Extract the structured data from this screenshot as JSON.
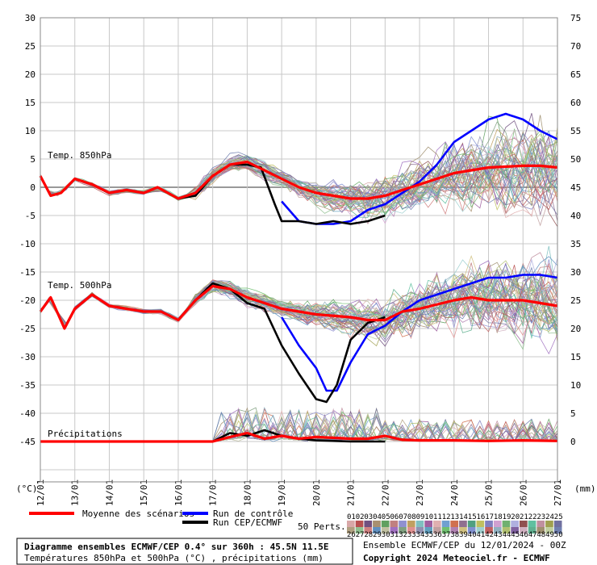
{
  "chart_data": {
    "type": "line",
    "left_axis": {
      "unit": "(°C)",
      "ticks": [
        30,
        25,
        20,
        15,
        10,
        5,
        0,
        -5,
        -10,
        -15,
        -20,
        -25,
        -30,
        -35,
        -40,
        -45
      ],
      "range": [
        -45,
        30
      ]
    },
    "right_axis": {
      "unit": "(mm)",
      "ticks": [
        75,
        70,
        65,
        60,
        55,
        50,
        45,
        40,
        35,
        30,
        25,
        20,
        15,
        10,
        5,
        0
      ],
      "range": [
        0,
        75
      ]
    },
    "x_labels": [
      "12/01",
      "13/01",
      "14/01",
      "15/01",
      "16/01",
      "17/01",
      "18/01",
      "19/01",
      "20/01",
      "21/01",
      "22/01",
      "23/01",
      "24/01",
      "25/01",
      "26/01",
      "27/01"
    ],
    "panel_labels": {
      "t850": "Temp. 850hPa",
      "t500": "Temp. 500hPa",
      "precip": "Précipitations"
    },
    "grid": true,
    "series": [
      {
        "key": "mean",
        "name": "Moyenne des scénarios",
        "color": "#ff0000",
        "t850": [
          [
            0,
            2
          ],
          [
            0.3,
            -1.5
          ],
          [
            0.6,
            -1
          ],
          [
            1,
            1.5
          ],
          [
            1.5,
            0.5
          ],
          [
            2,
            -1
          ],
          [
            2.5,
            -0.5
          ],
          [
            3,
            -1
          ],
          [
            3.4,
            0
          ],
          [
            4,
            -2
          ],
          [
            4.5,
            -1
          ],
          [
            5,
            2
          ],
          [
            5.5,
            4
          ],
          [
            6,
            4.5
          ],
          [
            6.5,
            3
          ],
          [
            7,
            1.5
          ],
          [
            7.5,
            0
          ],
          [
            8,
            -1
          ],
          [
            9,
            -2
          ],
          [
            9.5,
            -2
          ],
          [
            10,
            -1.5
          ],
          [
            10.5,
            -0.5
          ],
          [
            11,
            0.5
          ],
          [
            12,
            2.5
          ],
          [
            13,
            3.5
          ],
          [
            14,
            3.8
          ],
          [
            14.5,
            3.8
          ],
          [
            15,
            3.5
          ]
        ],
        "t500": [
          [
            0,
            -22
          ],
          [
            0.3,
            -19.5
          ],
          [
            0.7,
            -25
          ],
          [
            1,
            -21.5
          ],
          [
            1.5,
            -19
          ],
          [
            2,
            -21
          ],
          [
            2.5,
            -21.5
          ],
          [
            3,
            -22
          ],
          [
            3.5,
            -22
          ],
          [
            4,
            -23.5
          ],
          [
            4.5,
            -20
          ],
          [
            5,
            -17.5
          ],
          [
            5.5,
            -18
          ],
          [
            6,
            -19.5
          ],
          [
            6.5,
            -20.5
          ],
          [
            7,
            -21.5
          ],
          [
            7.5,
            -22
          ],
          [
            8,
            -22.5
          ],
          [
            9,
            -23
          ],
          [
            9.5,
            -23.5
          ],
          [
            10,
            -23.5
          ],
          [
            10.5,
            -22
          ],
          [
            11,
            -21.5
          ],
          [
            12,
            -20
          ],
          [
            12.5,
            -19.5
          ],
          [
            13,
            -20
          ],
          [
            14,
            -20
          ],
          [
            14.5,
            -20.5
          ],
          [
            15,
            -21
          ]
        ],
        "precip": [
          [
            0,
            0
          ],
          [
            5,
            0
          ],
          [
            5.5,
            0.8
          ],
          [
            6,
            1.5
          ],
          [
            6.5,
            0.5
          ],
          [
            7,
            1
          ],
          [
            7.5,
            0.5
          ],
          [
            8,
            0.8
          ],
          [
            9,
            0.5
          ],
          [
            9.5,
            0.5
          ],
          [
            10,
            1
          ],
          [
            10.5,
            0.3
          ],
          [
            11,
            0.2
          ],
          [
            12,
            0.2
          ],
          [
            13,
            0.1
          ],
          [
            14,
            0.2
          ],
          [
            15,
            0.1
          ]
        ]
      },
      {
        "key": "control",
        "name": "Run de contrôle",
        "color": "#0000ff",
        "t850": [
          [
            7,
            -2.5
          ],
          [
            7.5,
            -6
          ],
          [
            8,
            -6.5
          ],
          [
            8.5,
            -6.5
          ],
          [
            9,
            -6
          ],
          [
            9.5,
            -4
          ],
          [
            10,
            -3
          ],
          [
            10.5,
            -1
          ],
          [
            11,
            1
          ],
          [
            11.5,
            4
          ],
          [
            12,
            8
          ],
          [
            12.5,
            10
          ],
          [
            13,
            12
          ],
          [
            13.5,
            13
          ],
          [
            14,
            12
          ],
          [
            14.5,
            10
          ],
          [
            15,
            8.5
          ]
        ],
        "t500": [
          [
            7,
            -23
          ],
          [
            7.5,
            -28
          ],
          [
            8,
            -32
          ],
          [
            8.3,
            -36
          ],
          [
            8.6,
            -36
          ],
          [
            9,
            -31
          ],
          [
            9.5,
            -26
          ],
          [
            10,
            -24.5
          ],
          [
            10.5,
            -22
          ],
          [
            11,
            -20
          ],
          [
            12,
            -18
          ],
          [
            12.5,
            -17
          ],
          [
            13,
            -16
          ],
          [
            13.5,
            -16
          ],
          [
            14,
            -15.5
          ],
          [
            14.5,
            -15.5
          ],
          [
            15,
            -16
          ]
        ]
      },
      {
        "key": "ecmwf",
        "name": "Run CEP/ECMWF",
        "color": "#000000",
        "t850": [
          [
            0,
            2
          ],
          [
            0.3,
            -1.5
          ],
          [
            0.6,
            -1
          ],
          [
            1,
            1.5
          ],
          [
            1.5,
            0.5
          ],
          [
            2,
            -1
          ],
          [
            2.5,
            -0.5
          ],
          [
            3,
            -1
          ],
          [
            3.4,
            0
          ],
          [
            4,
            -2
          ],
          [
            4.5,
            -1.5
          ],
          [
            5,
            2
          ],
          [
            5.5,
            4
          ],
          [
            6,
            4
          ],
          [
            6.4,
            3.5
          ],
          [
            6.8,
            -3
          ],
          [
            7,
            -6
          ],
          [
            7.5,
            -6
          ],
          [
            8,
            -6.5
          ],
          [
            8.5,
            -6
          ],
          [
            9,
            -6.5
          ],
          [
            9.5,
            -6
          ],
          [
            10,
            -5
          ]
        ],
        "t500": [
          [
            0,
            -22
          ],
          [
            0.3,
            -19.5
          ],
          [
            0.7,
            -25
          ],
          [
            1,
            -21.5
          ],
          [
            1.5,
            -19
          ],
          [
            2,
            -21
          ],
          [
            2.5,
            -21.5
          ],
          [
            3,
            -22
          ],
          [
            3.5,
            -22
          ],
          [
            4,
            -23.5
          ],
          [
            4.5,
            -20
          ],
          [
            5,
            -17
          ],
          [
            5.5,
            -18
          ],
          [
            6,
            -20.5
          ],
          [
            6.5,
            -21.5
          ],
          [
            7,
            -28
          ],
          [
            7.5,
            -33
          ],
          [
            8,
            -37.5
          ],
          [
            8.3,
            -38
          ],
          [
            8.6,
            -35
          ],
          [
            9,
            -27
          ],
          [
            9.5,
            -24
          ],
          [
            10,
            -23
          ]
        ],
        "precip": [
          [
            0,
            0
          ],
          [
            5,
            0
          ],
          [
            5.5,
            1.5
          ],
          [
            6,
            1
          ],
          [
            6.5,
            2
          ],
          [
            7,
            1
          ],
          [
            7.5,
            0.5
          ],
          [
            8,
            0.2
          ],
          [
            9,
            0
          ],
          [
            10,
            0
          ]
        ]
      }
    ]
  },
  "legend": {
    "mean": "Moyenne des scénarios",
    "control": "Run de contrôle",
    "ecmwf": "Run CEP/ECMWF",
    "perts": "50 Perts.",
    "pert_row1": [
      "01",
      "02",
      "03",
      "04",
      "05",
      "06",
      "07",
      "08",
      "09",
      "10",
      "11",
      "12",
      "13",
      "14",
      "15",
      "16",
      "17",
      "18",
      "19",
      "20",
      "21",
      "22",
      "23",
      "24",
      "25"
    ],
    "pert_row2": [
      "26",
      "27",
      "28",
      "29",
      "30",
      "31",
      "32",
      "33",
      "34",
      "35",
      "36",
      "37",
      "38",
      "39",
      "40",
      "41",
      "42",
      "43",
      "44",
      "45",
      "46",
      "47",
      "48",
      "49",
      "50"
    ],
    "pert_colors1": [
      "#d8a8a8",
      "#b85050",
      "#705080",
      "#a89070",
      "#60a060",
      "#c08080",
      "#9090d0",
      "#c0a060",
      "#80c0c0",
      "#a060a0",
      "#e0b0b0",
      "#70a0d0",
      "#d07050",
      "#907090",
      "#50a080",
      "#c0c060",
      "#8080c0",
      "#d0a0d0",
      "#70b070",
      "#b0b0e0",
      "#905050",
      "#60c0a0",
      "#c090a0",
      "#a0a050",
      "#7070a0"
    ],
    "pert_colors2": [
      "#b0a080",
      "#90c090",
      "#d08080",
      "#6090c0",
      "#c0c0a0",
      "#a070c0",
      "#80a080",
      "#e09090",
      "#9090b0",
      "#60a0c0",
      "#c0a0a0",
      "#70c070",
      "#b080b0",
      "#d0c080",
      "#8090d0",
      "#a0d0d0",
      "#c06060",
      "#90b0c0",
      "#b0c070",
      "#8060a0",
      "#d0b0c0",
      "#60b090",
      "#a09070",
      "#c0d0a0",
      "#7080b0"
    ]
  },
  "info": {
    "title": "Diagramme ensembles ECMWF/CEP 0.4° sur 360h : 45.5N 11.5E",
    "subtitle": "Températures 850hPa et 500hPa (°C) , précipitations (mm)",
    "run": "Ensemble ECMWF/CEP du 12/01/2024 - 00Z",
    "copyright": "Copyright 2024 Meteociel.fr - ECMWF"
  }
}
